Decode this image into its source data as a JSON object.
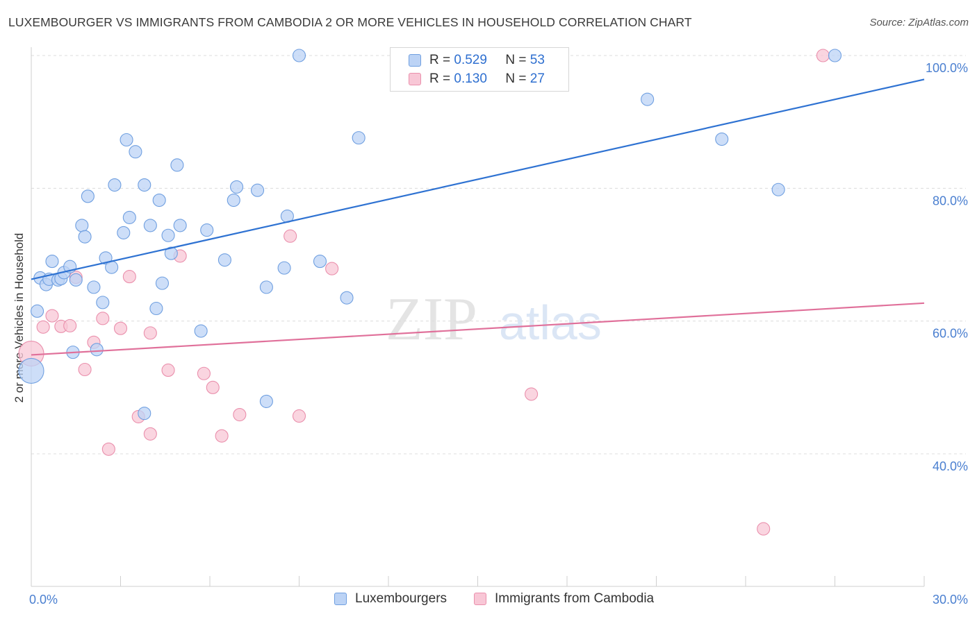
{
  "header": {
    "title": "LUXEMBOURGER VS IMMIGRANTS FROM CAMBODIA 2 OR MORE VEHICLES IN HOUSEHOLD CORRELATION CHART",
    "source": "Source: ZipAtlas.com"
  },
  "watermark": {
    "zip": "ZIP",
    "atlas": "atlas"
  },
  "legend": {
    "series1": {
      "r_label": "R =",
      "r_value": "0.529",
      "n_label": "N =",
      "n_value": "53"
    },
    "series2": {
      "r_label": "R =",
      "r_value": "0.130",
      "n_label": "N =",
      "n_value": "27"
    }
  },
  "bottom_legend": {
    "series1": "Luxembourgers",
    "series2": "Immigrants from Cambodia"
  },
  "colors": {
    "blue_fill": "#bcd3f5",
    "blue_stroke": "#6f9fe0",
    "blue_line": "#2e72d2",
    "pink_fill": "#f8c7d6",
    "pink_stroke": "#ea8fac",
    "pink_line": "#e0709a",
    "tick_text": "#4a7fd0",
    "grid": "#dcdcdc"
  },
  "chart_data": {
    "type": "scatter",
    "title": "LUXEMBOURGER VS IMMIGRANTS FROM CAMBODIA 2 OR MORE VEHICLES IN HOUSEHOLD CORRELATION CHART",
    "xlabel": "",
    "ylabel": "2 or more Vehicles in Household",
    "xlim": [
      0,
      30
    ],
    "ylim": [
      20,
      102
    ],
    "x_tick_labels": [
      "0.0%",
      "30.0%"
    ],
    "y_ticks": [
      40,
      60,
      80,
      100
    ],
    "y_tick_labels": [
      "40.0%",
      "60.0%",
      "80.0%",
      "100.0%"
    ],
    "series": [
      {
        "name": "Luxembourgers",
        "R": 0.529,
        "N": 53,
        "trend": {
          "x": [
            0,
            30
          ],
          "y": [
            66.3,
            96.4
          ]
        },
        "points": [
          {
            "x": 0.0,
            "y": 52.5,
            "s": 2.0
          },
          {
            "x": 0.2,
            "y": 61.5
          },
          {
            "x": 0.3,
            "y": 66.5
          },
          {
            "x": 0.5,
            "y": 65.5
          },
          {
            "x": 0.6,
            "y": 66.3
          },
          {
            "x": 0.7,
            "y": 69.0
          },
          {
            "x": 0.9,
            "y": 66.2
          },
          {
            "x": 1.0,
            "y": 66.4
          },
          {
            "x": 1.1,
            "y": 67.3
          },
          {
            "x": 1.3,
            "y": 68.2
          },
          {
            "x": 1.4,
            "y": 55.3
          },
          {
            "x": 1.5,
            "y": 66.2
          },
          {
            "x": 1.7,
            "y": 74.4
          },
          {
            "x": 1.8,
            "y": 72.7
          },
          {
            "x": 1.9,
            "y": 78.8
          },
          {
            "x": 2.1,
            "y": 65.1
          },
          {
            "x": 2.2,
            "y": 55.7
          },
          {
            "x": 2.4,
            "y": 62.8
          },
          {
            "x": 2.5,
            "y": 69.5
          },
          {
            "x": 2.7,
            "y": 68.1
          },
          {
            "x": 2.8,
            "y": 80.5
          },
          {
            "x": 3.1,
            "y": 73.3
          },
          {
            "x": 3.2,
            "y": 87.3
          },
          {
            "x": 3.3,
            "y": 75.6
          },
          {
            "x": 3.5,
            "y": 85.5
          },
          {
            "x": 3.8,
            "y": 80.5
          },
          {
            "x": 3.8,
            "y": 46.1
          },
          {
            "x": 4.0,
            "y": 74.4
          },
          {
            "x": 4.2,
            "y": 61.9
          },
          {
            "x": 4.3,
            "y": 78.2
          },
          {
            "x": 4.4,
            "y": 65.7
          },
          {
            "x": 4.6,
            "y": 72.9
          },
          {
            "x": 4.7,
            "y": 70.2
          },
          {
            "x": 4.9,
            "y": 83.5
          },
          {
            "x": 5.0,
            "y": 74.4
          },
          {
            "x": 5.7,
            "y": 58.5
          },
          {
            "x": 5.9,
            "y": 73.7
          },
          {
            "x": 6.5,
            "y": 69.2
          },
          {
            "x": 6.8,
            "y": 78.2
          },
          {
            "x": 6.9,
            "y": 80.2
          },
          {
            "x": 7.6,
            "y": 79.7
          },
          {
            "x": 7.9,
            "y": 65.1
          },
          {
            "x": 7.9,
            "y": 47.9
          },
          {
            "x": 8.5,
            "y": 68.0
          },
          {
            "x": 8.6,
            "y": 75.8
          },
          {
            "x": 9.0,
            "y": 100.0
          },
          {
            "x": 9.7,
            "y": 69.0
          },
          {
            "x": 10.6,
            "y": 63.5
          },
          {
            "x": 11.0,
            "y": 87.6
          },
          {
            "x": 20.7,
            "y": 93.4
          },
          {
            "x": 23.2,
            "y": 87.4
          },
          {
            "x": 25.1,
            "y": 79.8
          },
          {
            "x": 27.0,
            "y": 100.0
          }
        ]
      },
      {
        "name": "Immigrants from Cambodia",
        "R": 0.13,
        "N": 27,
        "trend": {
          "x": [
            0,
            30
          ],
          "y": [
            54.9,
            62.7
          ]
        },
        "points": [
          {
            "x": 0.0,
            "y": 55.1,
            "s": 2.0
          },
          {
            "x": 0.4,
            "y": 59.1
          },
          {
            "x": 0.7,
            "y": 60.8
          },
          {
            "x": 1.0,
            "y": 59.2
          },
          {
            "x": 1.3,
            "y": 59.3
          },
          {
            "x": 1.5,
            "y": 66.6
          },
          {
            "x": 1.8,
            "y": 52.7
          },
          {
            "x": 2.1,
            "y": 56.8
          },
          {
            "x": 2.4,
            "y": 60.4
          },
          {
            "x": 2.6,
            "y": 40.7
          },
          {
            "x": 3.0,
            "y": 58.9
          },
          {
            "x": 3.3,
            "y": 66.7
          },
          {
            "x": 3.6,
            "y": 45.6
          },
          {
            "x": 4.0,
            "y": 58.2
          },
          {
            "x": 4.0,
            "y": 43.0
          },
          {
            "x": 4.6,
            "y": 52.6
          },
          {
            "x": 5.0,
            "y": 69.8
          },
          {
            "x": 5.8,
            "y": 52.1
          },
          {
            "x": 6.1,
            "y": 50.0
          },
          {
            "x": 6.4,
            "y": 42.7
          },
          {
            "x": 7.0,
            "y": 45.9
          },
          {
            "x": 8.7,
            "y": 72.8
          },
          {
            "x": 9.0,
            "y": 45.7
          },
          {
            "x": 10.1,
            "y": 67.9
          },
          {
            "x": 16.8,
            "y": 49.0
          },
          {
            "x": 24.6,
            "y": 28.7
          },
          {
            "x": 26.6,
            "y": 100.0
          }
        ]
      }
    ]
  }
}
